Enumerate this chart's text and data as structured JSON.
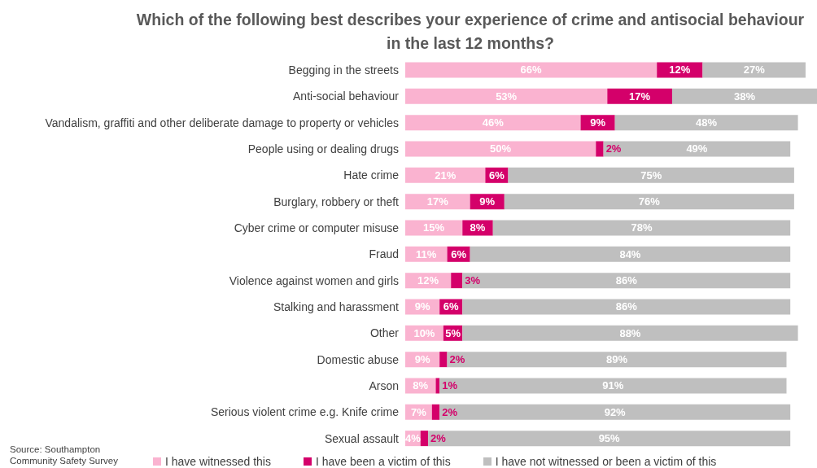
{
  "chart_data": {
    "type": "bar",
    "orientation": "horizontal",
    "stacked": true,
    "title": "Which of the following best describes your experience of crime and antisocial behaviour in the last 12 months?",
    "categories": [
      "Begging in the streets",
      "Anti-social behaviour",
      "Vandalism, graffiti and other deliberate damage to property or vehicles",
      "People using or dealing drugs",
      "Hate crime",
      "Burglary, robbery or theft",
      "Cyber crime or computer misuse",
      "Fraud",
      "Violence against women and girls",
      "Stalking and harassment",
      "Other",
      "Domestic abuse",
      "Arson",
      "Serious violent crime e.g. Knife crime",
      "Sexual assault"
    ],
    "series": [
      {
        "name": "I have witnessed this",
        "color": "#fab3d0",
        "values": [
          66,
          53,
          46,
          50,
          21,
          17,
          15,
          11,
          12,
          9,
          10,
          9,
          8,
          7,
          4
        ],
        "value_labels": [
          "66%",
          "53%",
          "46%",
          "50%",
          "21%",
          "17%",
          "15%",
          "11%",
          "12%",
          "9%",
          "10%",
          "9%",
          "8%",
          "7%",
          "4%"
        ]
      },
      {
        "name": "I have been a victim of this",
        "color": "#d4006a",
        "values": [
          12,
          17,
          9,
          2,
          6,
          9,
          8,
          6,
          3,
          6,
          5,
          2,
          1,
          2,
          2
        ],
        "value_labels": [
          "12%",
          "17%",
          "9%",
          "2%",
          "6%",
          "9%",
          "8%",
          "6%",
          "3%",
          "6%",
          "5%",
          "2%",
          "1%",
          "2%",
          "2%"
        ]
      },
      {
        "name": "I have not witnessed or been a victim of this",
        "color": "#bfbfbf",
        "values": [
          27,
          38,
          48,
          49,
          75,
          76,
          78,
          84,
          86,
          86,
          88,
          89,
          91,
          92,
          95
        ],
        "value_labels": [
          "27%",
          "38%",
          "48%",
          "49%",
          "75%",
          "76%",
          "78%",
          "84%",
          "86%",
          "86%",
          "88%",
          "89%",
          "91%",
          "92%",
          "95%"
        ]
      }
    ],
    "legend": "bottom",
    "grid": false,
    "annotations": [
      "Source: Southampton Community Safety Survey"
    ]
  }
}
